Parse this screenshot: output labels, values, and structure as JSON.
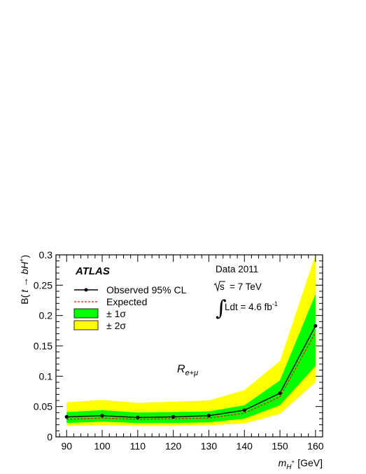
{
  "chart_data": {
    "type": "line",
    "x": [
      90,
      100,
      110,
      120,
      130,
      140,
      150,
      160
    ],
    "xlim": [
      87,
      162
    ],
    "ylim": [
      0,
      0.3
    ],
    "x_ticks": [
      "90",
      "100",
      "110",
      "120",
      "130",
      "140",
      "150",
      "160"
    ],
    "y_ticks": [
      "0",
      "0.05",
      "0.1",
      "0.15",
      "0.2",
      "0.25",
      "0.3"
    ],
    "xlabel": {
      "var": "m",
      "sub": "H",
      "subsup": "+",
      "unit": "[GeV]"
    },
    "ylabel": {
      "pre": "B(",
      "t": "t",
      "arrow": "→",
      "bh": "bH",
      "sup": "+",
      "post": ")"
    },
    "observed": [
      0.033,
      0.035,
      0.032,
      0.033,
      0.035,
      0.044,
      0.072,
      0.183
    ],
    "expected": [
      0.029,
      0.031,
      0.029,
      0.03,
      0.031,
      0.039,
      0.066,
      0.172
    ],
    "band_1sigma": {
      "lower": [
        0.023,
        0.025,
        0.023,
        0.023,
        0.024,
        0.03,
        0.052,
        0.117
      ],
      "upper": [
        0.041,
        0.044,
        0.04,
        0.041,
        0.042,
        0.052,
        0.093,
        0.235
      ]
    },
    "band_2sigma": {
      "lower": [
        0.018,
        0.019,
        0.018,
        0.018,
        0.019,
        0.022,
        0.038,
        0.09
      ],
      "upper": [
        0.057,
        0.061,
        0.056,
        0.058,
        0.06,
        0.077,
        0.125,
        0.305
      ]
    },
    "legend": [
      {
        "label": "Observed 95% CL",
        "kind": "observed"
      },
      {
        "label": "Expected",
        "kind": "expected"
      },
      {
        "label": "± 1σ",
        "kind": "band1"
      },
      {
        "label": "± 2σ",
        "kind": "band2"
      }
    ],
    "legend_position": "top-left",
    "experiment": "ATLAS",
    "dataset": "Data 2011",
    "energy": {
      "sqrt": "s",
      "value": "= 7 TeV"
    },
    "lumi": {
      "text": "Ldt = 4.6 fb",
      "sup": "-1"
    },
    "channel": {
      "main": "R",
      "sub": "e+μ"
    },
    "colors": {
      "band1": "#00ff00",
      "band2": "#ffff00",
      "observed": "#000000",
      "expected": "#ff0000",
      "frame": "#000000"
    },
    "grid": false
  }
}
